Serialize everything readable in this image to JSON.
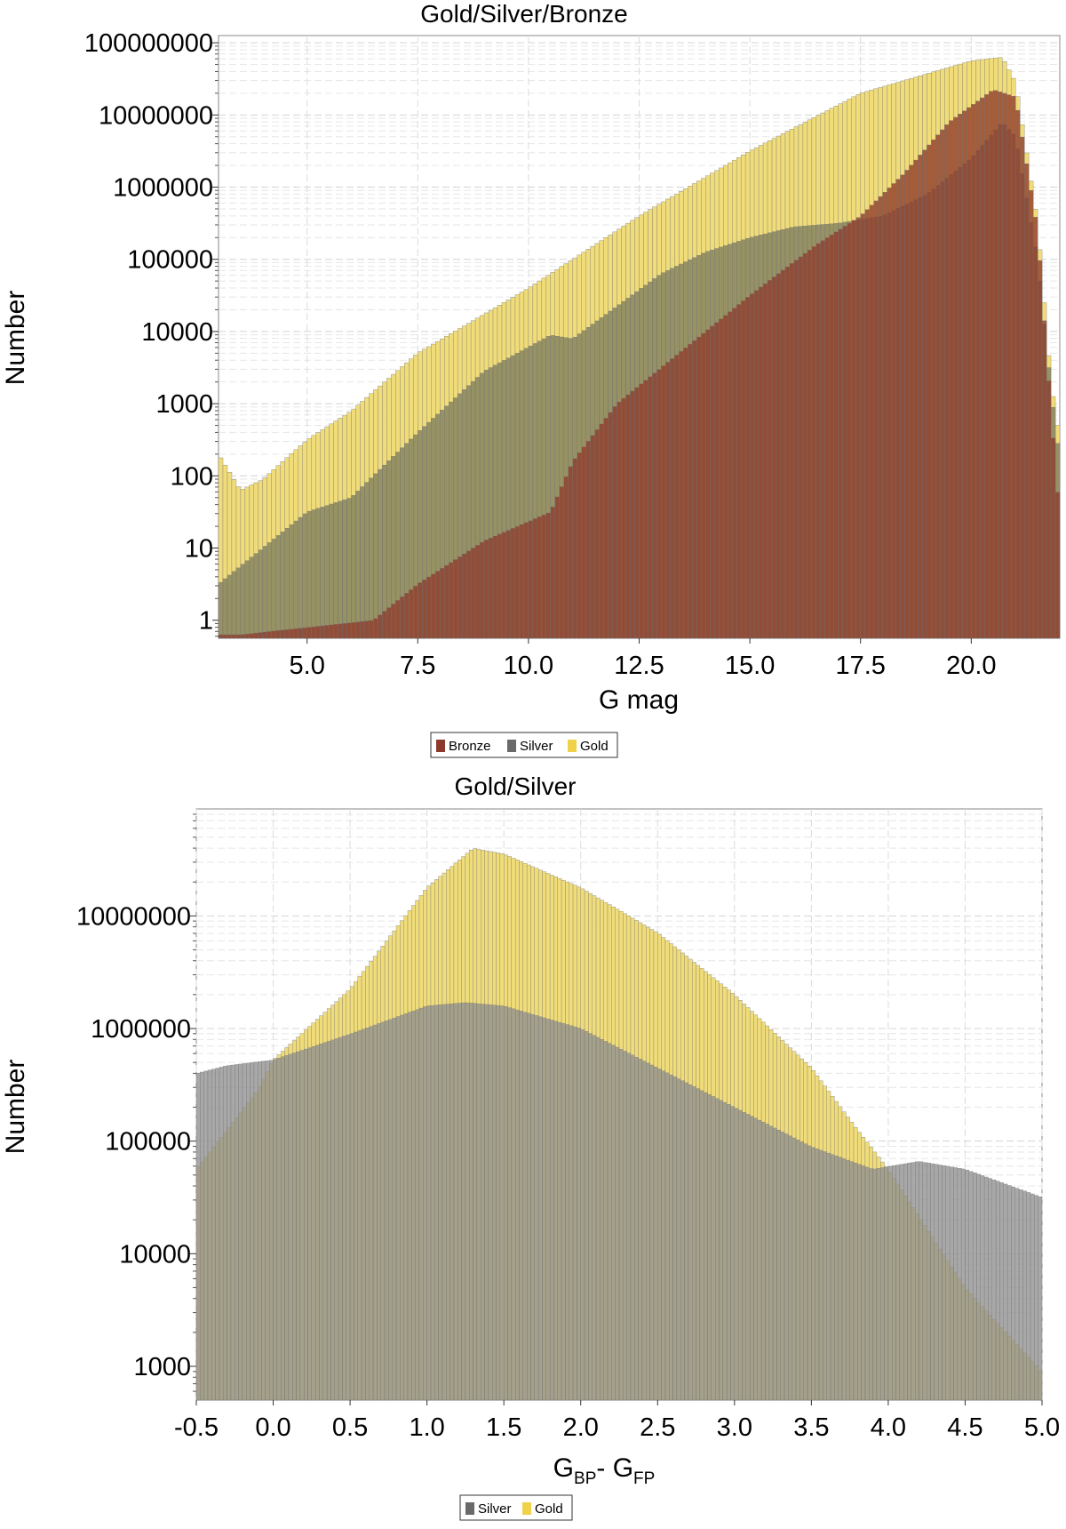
{
  "chart_data": [
    {
      "type": "bar",
      "title": "Gold/Silver/Bronze",
      "xlabel": "G mag",
      "ylabel": "Number",
      "y_scale": "log",
      "xlim": [
        3.0,
        22.0
      ],
      "ylim_log10": [
        -0.25,
        8.1
      ],
      "grid": true,
      "legend_placement": "bottom-center",
      "x_ticks": [
        "5.0",
        "7.5",
        "10.0",
        "12.5",
        "15.0",
        "17.5",
        "20.0"
      ],
      "y_ticks": [
        "1",
        "10",
        "100",
        "1000",
        "10000",
        "100000",
        "1000000",
        "10000000",
        "100000000"
      ],
      "legend": [
        "Bronze",
        "Silver",
        "Gold"
      ],
      "series": [
        {
          "name": "Gold",
          "color": "#f0dc78",
          "x_log10": [
            [
              3.0,
              2.3
            ],
            [
              3.5,
              1.8
            ],
            [
              4.0,
              1.95
            ],
            [
              5.0,
              2.5
            ],
            [
              6.0,
              2.9
            ],
            [
              7.5,
              3.7
            ],
            [
              10.0,
              4.6
            ],
            [
              12.5,
              5.6
            ],
            [
              15.0,
              6.5
            ],
            [
              17.5,
              7.3
            ],
            [
              20.0,
              7.75
            ],
            [
              20.7,
              7.8
            ],
            [
              21.0,
              7.45
            ],
            [
              21.5,
              5.5
            ],
            [
              21.8,
              3.3
            ],
            [
              22.0,
              2.5
            ]
          ]
        },
        {
          "name": "Silver",
          "color": "#7d7d5f",
          "x_log10": [
            [
              3.0,
              0.5
            ],
            [
              4.0,
              1.0
            ],
            [
              5.0,
              1.5
            ],
            [
              6.0,
              1.7
            ],
            [
              7.5,
              2.6
            ],
            [
              9.0,
              3.45
            ],
            [
              10.5,
              3.95
            ],
            [
              11.0,
              3.9
            ],
            [
              12.0,
              4.35
            ],
            [
              13.0,
              4.8
            ],
            [
              14.0,
              5.1
            ],
            [
              15.0,
              5.3
            ],
            [
              16.0,
              5.45
            ],
            [
              17.0,
              5.5
            ],
            [
              18.0,
              5.6
            ],
            [
              19.0,
              5.9
            ],
            [
              20.0,
              6.4
            ],
            [
              20.7,
              6.9
            ],
            [
              21.0,
              6.7
            ],
            [
              21.5,
              5.0
            ],
            [
              21.8,
              3.2
            ],
            [
              22.0,
              2.2
            ]
          ]
        },
        {
          "name": "Bronze",
          "color": "#8e3a2a",
          "x_log10": [
            [
              3.5,
              -0.2
            ],
            [
              6.5,
              0.0
            ],
            [
              7.5,
              0.5
            ],
            [
              9.0,
              1.1
            ],
            [
              10.5,
              1.5
            ],
            [
              11.0,
              2.2
            ],
            [
              12.0,
              3.0
            ],
            [
              13.0,
              3.5
            ],
            [
              15.0,
              4.5
            ],
            [
              16.5,
              5.2
            ],
            [
              17.5,
              5.6
            ],
            [
              18.5,
              6.2
            ],
            [
              19.5,
              6.9
            ],
            [
              20.5,
              7.35
            ],
            [
              21.0,
              7.25
            ],
            [
              21.5,
              5.4
            ],
            [
              21.8,
              2.9
            ],
            [
              22.0,
              1.4
            ]
          ]
        }
      ]
    },
    {
      "type": "bar",
      "title": "Gold/Silver",
      "xlabel": "G",
      "xlabel_sub1": "BP",
      "xlabel_mid": "- G",
      "xlabel_sub2": "FP",
      "ylabel": "Number",
      "y_scale": "log",
      "xlim": [
        -0.5,
        5.0
      ],
      "ylim_log10": [
        2.7,
        7.95
      ],
      "grid": true,
      "legend_placement": "bottom-center",
      "x_ticks": [
        "-0.5",
        "0.0",
        "0.5",
        "1.0",
        "1.5",
        "2.0",
        "2.5",
        "3.0",
        "3.5",
        "4.0",
        "4.5",
        "5.0"
      ],
      "y_ticks": [
        "1000",
        "10000",
        "100000",
        "1000000",
        "10000000"
      ],
      "legend": [
        "Silver",
        "Gold"
      ],
      "series": [
        {
          "name": "Gold",
          "color": "#f0dc78",
          "x_log10": [
            [
              -0.5,
              4.75
            ],
            [
              -0.1,
              5.45
            ],
            [
              0.0,
              5.72
            ],
            [
              0.5,
              6.35
            ],
            [
              1.0,
              7.25
            ],
            [
              1.3,
              7.6
            ],
            [
              1.5,
              7.55
            ],
            [
              2.0,
              7.25
            ],
            [
              2.5,
              6.85
            ],
            [
              3.0,
              6.3
            ],
            [
              3.5,
              5.65
            ],
            [
              3.8,
              5.1
            ],
            [
              4.0,
              4.75
            ],
            [
              4.5,
              3.7
            ],
            [
              5.0,
              2.95
            ]
          ]
        },
        {
          "name": "Silver",
          "color": "#8f8f8f",
          "x_log10": [
            [
              -0.5,
              5.6
            ],
            [
              -0.3,
              5.67
            ],
            [
              0.0,
              5.72
            ],
            [
              0.5,
              5.95
            ],
            [
              1.0,
              6.2
            ],
            [
              1.25,
              6.23
            ],
            [
              1.5,
              6.2
            ],
            [
              2.0,
              6.0
            ],
            [
              2.5,
              5.65
            ],
            [
              3.0,
              5.3
            ],
            [
              3.5,
              4.95
            ],
            [
              3.9,
              4.75
            ],
            [
              4.2,
              4.82
            ],
            [
              4.5,
              4.75
            ],
            [
              5.0,
              4.5
            ]
          ]
        }
      ]
    }
  ]
}
